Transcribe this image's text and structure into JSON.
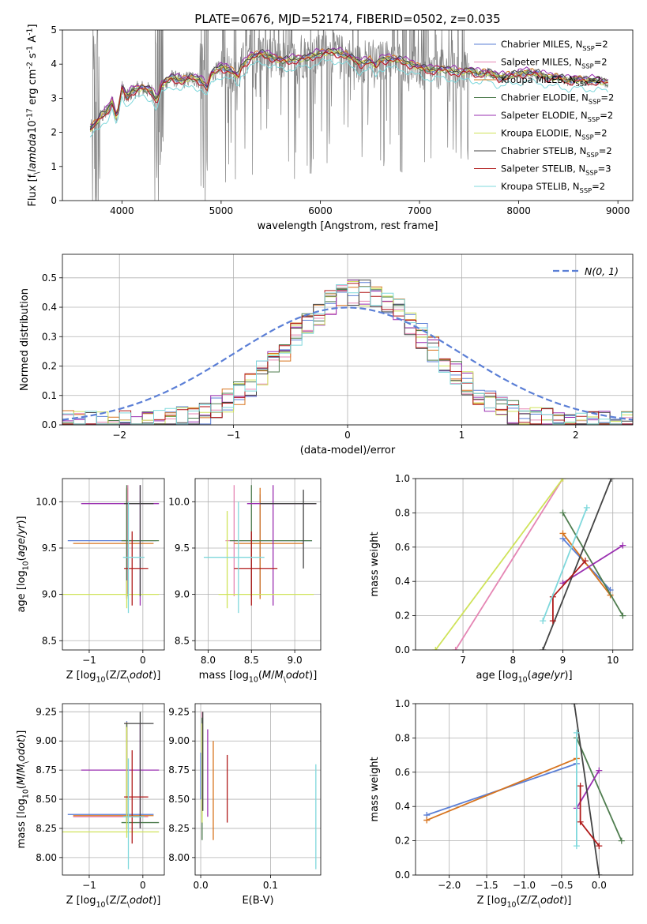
{
  "figure": {
    "title": "PLATE=0676, MJD=52174, FIBERID=0502, z=0.035"
  },
  "legend_series": [
    {
      "name": "Chabrier MILES, N$_{SSP}$=2",
      "color": "#5b7fd6"
    },
    {
      "name": "Salpeter MILES, N$_{SSP}$=2",
      "color": "#e586b4"
    },
    {
      "name": "Kroupa MILES, N$_{SSP}$=2",
      "color": "#d7741f"
    },
    {
      "name": "Chabrier ELODIE, N$_{SSP}$=2",
      "color": "#4f7d4f"
    },
    {
      "name": "Salpeter ELODIE, N$_{SSP}$=2",
      "color": "#9a2fb0"
    },
    {
      "name": "Kroupa ELODIE, N$_{SSP}$=2",
      "color": "#cfe35a"
    },
    {
      "name": "Chabrier STELIB, N$_{SSP}$=2",
      "color": "#444444"
    },
    {
      "name": "Salpeter STELIB, N$_{SSP}$=3",
      "color": "#b01a1a"
    },
    {
      "name": "Kroupa STELIB, N$_{SSP}$=2",
      "color": "#7fd8dc"
    }
  ],
  "chart_data": [
    {
      "id": "spectrum",
      "type": "line",
      "xlabel": "wavelength [Angstrom, rest frame]",
      "ylabel": "Flux [f$_\\lambda$10$^{-17}$ erg cm$^{-2}$ s$^{-1}$ A$^{-1}$]",
      "xlim": [
        3400,
        9150
      ],
      "ylim": [
        0,
        5
      ],
      "xticks": [
        4000,
        5000,
        6000,
        7000,
        8000,
        9000
      ],
      "yticks": [
        0,
        1,
        2,
        3,
        4,
        5
      ],
      "data_color": "#808080",
      "model_x": [
        3680,
        3750,
        3800,
        3850,
        3900,
        3950,
        4000,
        4050,
        4100,
        4200,
        4300,
        4350,
        4400,
        4500,
        4600,
        4700,
        4800,
        4861,
        4900,
        5000,
        5100,
        5175,
        5200,
        5300,
        5400,
        5500,
        5600,
        5700,
        5800,
        5900,
        6000,
        6100,
        6200,
        6300,
        6400,
        6500,
        6563,
        6600,
        6700,
        6800,
        6900,
        7000,
        7100,
        7200,
        7300,
        7400,
        7500,
        7600,
        7700,
        7800,
        7900,
        8000,
        8100,
        8200,
        8300,
        8400,
        8500,
        8600,
        8700,
        8800,
        8900
      ],
      "model_y": [
        2.1,
        2.3,
        2.5,
        2.6,
        2.9,
        2.4,
        3.3,
        3.0,
        3.2,
        3.3,
        3.2,
        2.9,
        3.4,
        3.6,
        3.5,
        3.6,
        3.5,
        3.3,
        3.7,
        3.9,
        3.8,
        3.6,
        3.9,
        4.2,
        4.3,
        4.2,
        4.1,
        4.1,
        4.15,
        4.2,
        4.3,
        4.35,
        4.3,
        4.2,
        4.0,
        4.1,
        3.9,
        4.1,
        4.15,
        4.1,
        4.0,
        3.9,
        3.8,
        3.85,
        3.8,
        3.75,
        3.8,
        3.7,
        3.75,
        3.6,
        3.65,
        3.7,
        3.75,
        3.7,
        3.6,
        3.6,
        3.5,
        3.55,
        3.5,
        3.5,
        3.45
      ],
      "series_offsets": [
        0.0,
        -0.05,
        0.05,
        0.0,
        0.1,
        0.0,
        0.05,
        -0.05,
        -0.25
      ]
    },
    {
      "id": "residuals",
      "type": "bar",
      "xlabel": "(data-model)/error",
      "ylabel": "Normed distribution",
      "xlim": [
        -2.5,
        2.5
      ],
      "ylim": [
        0,
        0.58
      ],
      "xticks": [
        -2,
        -1,
        0,
        1,
        2
      ],
      "yticks": [
        0.0,
        0.1,
        0.2,
        0.3,
        0.4,
        0.5
      ],
      "bin_edges_start": -2.5,
      "bin_width": 0.1,
      "gaussian_label": "$\\mathcal{N}(0,1)$",
      "gaussian_color": "#5b7fd6"
    },
    {
      "id": "age_vs_z",
      "type": "scatter",
      "xlabel": "Z [log$_{10}$(Z/Z$_\\odot$)]",
      "ylabel": "age  [log$_{10}$($age/yr$)]",
      "xlim": [
        -1.5,
        0.4
      ],
      "ylim": [
        8.4,
        10.25
      ],
      "xticks": [
        -1,
        0
      ],
      "yticks": [
        8.5,
        9.0,
        9.5,
        10.0
      ]
    },
    {
      "id": "age_vs_mass",
      "type": "scatter",
      "xlabel": "mass [log$_{10}$($M/M_\\odot$)]",
      "ylabel": "",
      "xlim": [
        7.85,
        9.3
      ],
      "ylim": [
        8.4,
        10.25
      ],
      "xticks": [
        8.0,
        8.5,
        9.0
      ],
      "yticks": [
        8.5,
        9.0,
        9.5,
        10.0
      ]
    },
    {
      "id": "weight_vs_age",
      "type": "line",
      "xlabel": "age  [log$_{10}$($age/yr$)]",
      "ylabel": "mass weight",
      "xlim": [
        6.05,
        10.4
      ],
      "ylim": [
        0,
        1
      ],
      "xticks": [
        7,
        8,
        9,
        10
      ],
      "yticks": [
        0.0,
        0.2,
        0.4,
        0.6,
        0.8,
        1.0
      ],
      "lines": [
        {
          "x": [
            9.0,
            9.95
          ],
          "y": [
            0.65,
            0.35
          ]
        },
        {
          "x": [
            6.85,
            9.0
          ],
          "y": [
            0.0,
            1.0
          ]
        },
        {
          "x": [
            9.0,
            9.95
          ],
          "y": [
            0.68,
            0.32
          ]
        },
        {
          "x": [
            9.0,
            10.2
          ],
          "y": [
            0.8,
            0.2
          ]
        },
        {
          "x": [
            9.0,
            10.2
          ],
          "y": [
            0.39,
            0.61
          ]
        },
        {
          "x": [
            6.45,
            9.0
          ],
          "y": [
            0.0,
            1.0
          ]
        },
        {
          "x": [
            8.6,
            9.97
          ],
          "y": [
            0.0,
            1.0
          ]
        },
        {
          "x": [
            8.8,
            8.8,
            9.45
          ],
          "y": [
            0.17,
            0.31,
            0.52
          ]
        },
        {
          "x": [
            8.6,
            9.48
          ],
          "y": [
            0.17,
            0.83
          ]
        }
      ]
    },
    {
      "id": "mass_vs_z",
      "type": "scatter",
      "xlabel": "Z [log$_{10}$(Z/Z$_\\odot$)]",
      "ylabel": "mass [log$_{10}$($M/M_\\odot$)]",
      "xlim": [
        -1.5,
        0.4
      ],
      "ylim": [
        7.85,
        9.32
      ],
      "xticks": [
        -1,
        0
      ],
      "yticks": [
        8.0,
        8.25,
        8.5,
        8.75,
        9.0,
        9.25
      ]
    },
    {
      "id": "mass_vs_ebv",
      "type": "scatter",
      "xlabel": "E(B-V)",
      "ylabel": "",
      "xlim": [
        -0.008,
        0.172
      ],
      "ylim": [
        7.85,
        9.32
      ],
      "xticks": [
        0.0,
        0.1
      ],
      "yticks": [
        8.0,
        8.25,
        8.5,
        8.75,
        9.0,
        9.25
      ]
    },
    {
      "id": "weight_vs_z",
      "type": "line",
      "xlabel": "Z [log$_{10}$(Z/Z$_\\odot$)]",
      "ylabel": "mass weight",
      "xlim": [
        -2.45,
        0.45
      ],
      "ylim": [
        0,
        1
      ],
      "xticks": [
        -2.0,
        -1.5,
        -1.0,
        -0.5,
        0.0
      ],
      "yticks": [
        0.0,
        0.2,
        0.4,
        0.6,
        0.8,
        1.0
      ],
      "lines": [
        {
          "x": [
            -2.3,
            -0.3
          ],
          "y": [
            0.35,
            0.65
          ]
        },
        {
          "x": [
            -2.3,
            -0.3
          ],
          "y": [
            0.32,
            0.68
          ]
        },
        {
          "x": [
            -0.3,
            0.3
          ],
          "y": [
            0.8,
            0.2
          ]
        },
        {
          "x": [
            -0.3,
            0.0
          ],
          "y": [
            0.39,
            0.61
          ]
        },
        {
          "x": [
            -0.33,
            0.0
          ],
          "y": [
            1.0,
            0.0
          ]
        },
        {
          "x": [
            -0.25,
            -0.25,
            0.0
          ],
          "y": [
            0.52,
            0.31,
            0.17
          ]
        },
        {
          "x": [
            -0.3,
            -0.3
          ],
          "y": [
            0.17,
            0.83
          ]
        }
      ]
    }
  ]
}
